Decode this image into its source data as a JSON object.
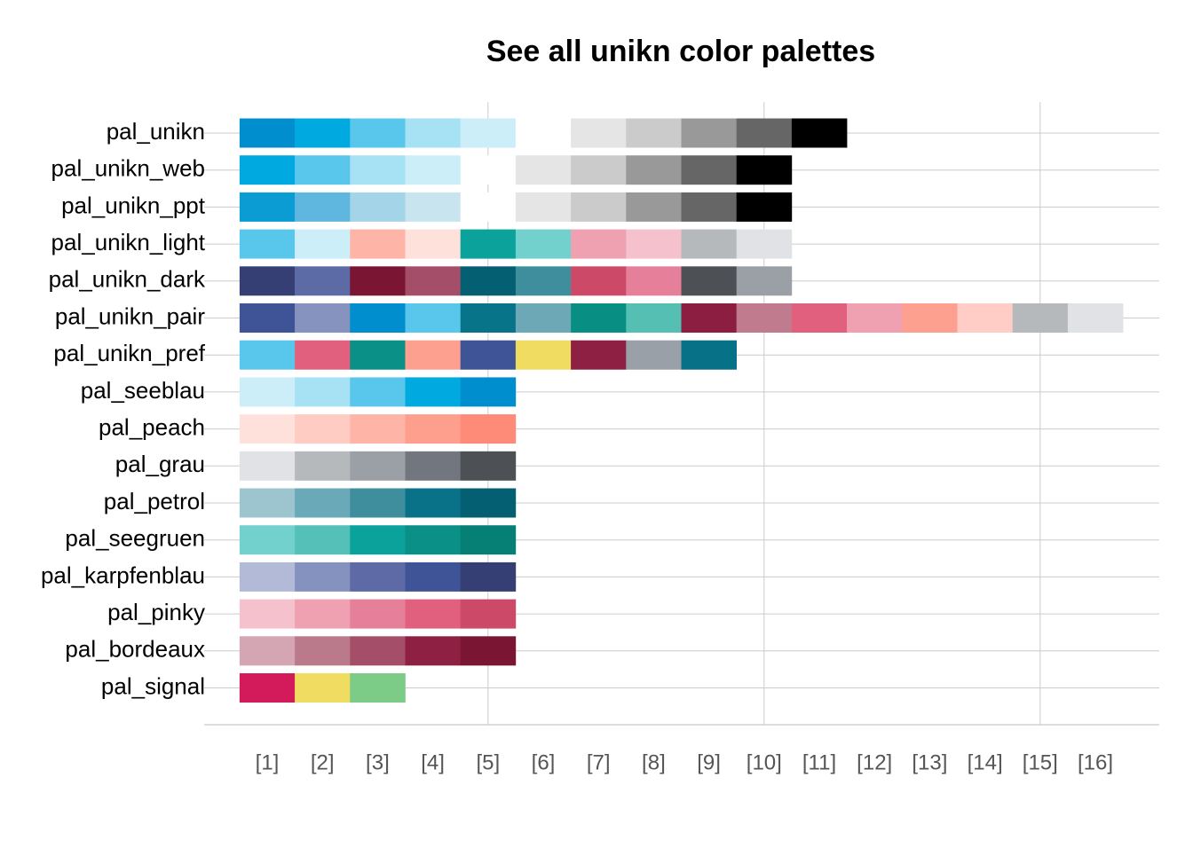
{
  "chart_data": {
    "type": "palettes",
    "title": "See all unikn color palettes",
    "categories": [
      "[1]",
      "[2]",
      "[3]",
      "[4]",
      "[5]",
      "[6]",
      "[7]",
      "[8]",
      "[9]",
      "[10]",
      "[11]",
      "[12]",
      "[13]",
      "[14]",
      "[15]",
      "[16]"
    ],
    "xgrid": [
      5,
      10,
      15
    ],
    "series": [
      {
        "name": "pal_unikn",
        "colors": [
          "#008ECE",
          "#00A9E0",
          "#59C7EB",
          "#A6E1F4",
          "#CCEEF9",
          "#FFFFFF",
          "#E5E5E5",
          "#CBCBCB",
          "#999999",
          "#666666",
          "#000000"
        ]
      },
      {
        "name": "pal_unikn_web",
        "colors": [
          "#00A9E0",
          "#59C7EB",
          "#A6E1F4",
          "#CCEEF9",
          "#FFFFFF",
          "#E5E5E5",
          "#CBCBCB",
          "#999999",
          "#666666",
          "#000000"
        ]
      },
      {
        "name": "pal_unikn_ppt",
        "colors": [
          "#0A9CD3",
          "#5FB7DF",
          "#A3D4E8",
          "#C8E4EF",
          "#FFFFFF",
          "#E5E5E5",
          "#CBCBCB",
          "#999999",
          "#666666",
          "#000000"
        ]
      },
      {
        "name": "pal_unikn_light",
        "colors": [
          "#59C7EB",
          "#CCEEF9",
          "#FEB4A6",
          "#FFE1DC",
          "#0AA29A",
          "#72D1CC",
          "#EFA1B1",
          "#F5C1CD",
          "#B6B9BC",
          "#E0E2E5"
        ]
      },
      {
        "name": "pal_unikn_dark",
        "colors": [
          "#353F73",
          "#5C6AA6",
          "#7A1533",
          "#A54E6A",
          "#045F72",
          "#3E8E9E",
          "#CC4A67",
          "#E6809A",
          "#4D5055",
          "#9AA0A6"
        ]
      },
      {
        "name": "pal_unikn_pair",
        "colors": [
          "#3F5397",
          "#8693BF",
          "#008ECE",
          "#59C7EB",
          "#087489",
          "#6CA8B6",
          "#098E84",
          "#56BFB4",
          "#8C1E42",
          "#C07B8E",
          "#E0607E",
          "#EFA1B1",
          "#FEA090",
          "#FFCDC5",
          "#B6B9BC",
          "#E0E2E5"
        ]
      },
      {
        "name": "pal_unikn_pref",
        "colors": [
          "#59C7EB",
          "#E0607E",
          "#0A9086",
          "#FEA090",
          "#3E5496",
          "#EFDC60",
          "#8E2043",
          "#9AA0A7",
          "#077187"
        ]
      },
      {
        "name": "pal_seeblau",
        "colors": [
          "#CCEEF9",
          "#A6E1F4",
          "#59C7EB",
          "#00A9E0",
          "#008ECE"
        ]
      },
      {
        "name": "pal_peach",
        "colors": [
          "#FFE1DC",
          "#FFCCC3",
          "#FEB4A6",
          "#FE9F8E",
          "#FE8B78"
        ]
      },
      {
        "name": "pal_grau",
        "colors": [
          "#E0E2E5",
          "#B6B9BC",
          "#9AA0A6",
          "#72767E",
          "#4D5055"
        ]
      },
      {
        "name": "pal_petrol",
        "colors": [
          "#9CC5D0",
          "#6AA9B7",
          "#3E8E9E",
          "#0A7288",
          "#045F72"
        ]
      },
      {
        "name": "pal_seegruen",
        "colors": [
          "#72D1CC",
          "#54C0B7",
          "#0AA29A",
          "#0A9086",
          "#067F75"
        ]
      },
      {
        "name": "pal_karpfenblau",
        "colors": [
          "#B2BAD7",
          "#8592BF",
          "#5D6AA6",
          "#3F5397",
          "#353F73"
        ]
      },
      {
        "name": "pal_pinky",
        "colors": [
          "#F5C1CD",
          "#EFA1B1",
          "#E6809A",
          "#E0607E",
          "#CC4A67"
        ]
      },
      {
        "name": "pal_bordeaux",
        "colors": [
          "#D4A5B3",
          "#BA7A8C",
          "#A54E6A",
          "#8E2043",
          "#7A1533"
        ]
      },
      {
        "name": "pal_signal",
        "colors": [
          "#D31A5A",
          "#EFDC60",
          "#7CCB86"
        ]
      }
    ]
  }
}
